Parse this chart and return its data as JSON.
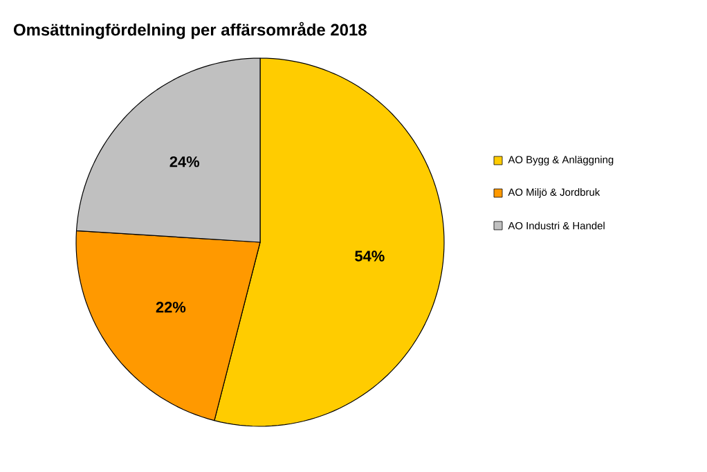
{
  "chart_data": {
    "type": "pie",
    "title": "Omsättningfördelning per affärsområde 2018",
    "categories": [
      "AO Bygg & Anläggning",
      "AO Miljö & Jordbruk",
      "AO Industri & Handel"
    ],
    "values": [
      54,
      22,
      24
    ],
    "colors": [
      "#ffcc00",
      "#ff9900",
      "#c0c0c0"
    ],
    "value_labels": [
      "54%",
      "22%",
      "24%"
    ],
    "legend": "right"
  }
}
